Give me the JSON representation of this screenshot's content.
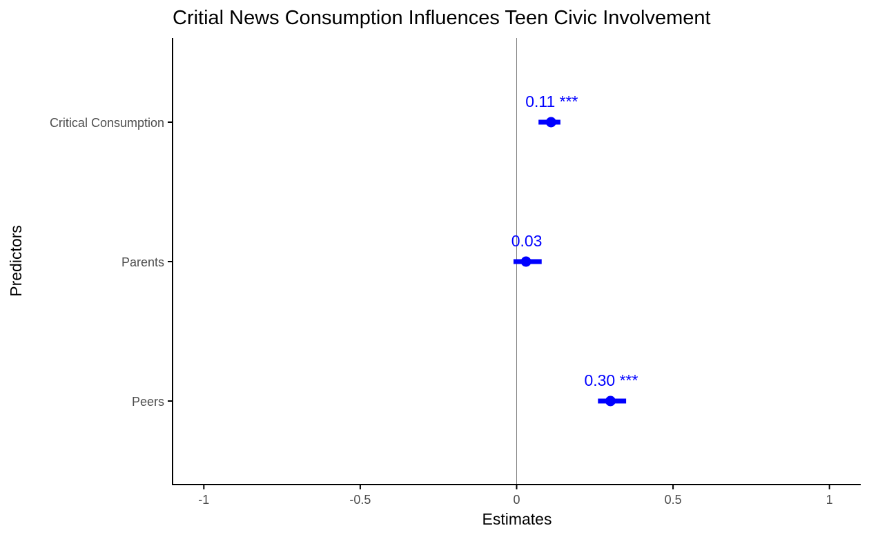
{
  "chart_data": {
    "type": "scatter",
    "title": "Critial News Consumption Influences Teen Civic Involvement",
    "xlabel": "Estimates",
    "ylabel": "Predictors",
    "xlim": [
      -1.1,
      1.1
    ],
    "x_ticks": [
      {
        "value": -1,
        "label": "-1"
      },
      {
        "value": -0.5,
        "label": "-0.5"
      },
      {
        "value": 0,
        "label": "0"
      },
      {
        "value": 0.5,
        "label": "0.5"
      },
      {
        "value": 1,
        "label": "1"
      }
    ],
    "reference_line_x": 0,
    "grid": false,
    "points": [
      {
        "category": "Critical Consumption",
        "estimate": 0.11,
        "ci_low": 0.07,
        "ci_high": 0.14,
        "label": "0.11 ***"
      },
      {
        "category": "Parents",
        "estimate": 0.03,
        "ci_low": -0.01,
        "ci_high": 0.08,
        "label": "0.03"
      },
      {
        "category": "Peers",
        "estimate": 0.3,
        "ci_low": 0.26,
        "ci_high": 0.35,
        "label": "0.30 ***"
      }
    ],
    "colors": {
      "marks": "#0000ff",
      "axis": "#000000",
      "reference_line": "#808080",
      "tick_text": "#4d4d4d"
    }
  }
}
